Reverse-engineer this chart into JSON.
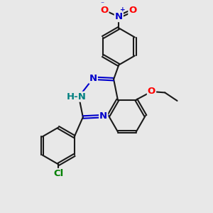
{
  "bg_color": "#e8e8e8",
  "bond_color": "#1a1a1a",
  "N_color": "#0000cc",
  "O_color": "#ff0000",
  "Cl_color": "#008000",
  "NH_color": "#008080",
  "line_width": 1.5,
  "dbo": 0.006,
  "font_size": 9.5,
  "ring_r": 0.09,
  "figsize": [
    3.0,
    3.0
  ],
  "dpi": 100,
  "xlim": [
    0.0,
    1.0
  ],
  "ylim": [
    0.0,
    1.0
  ]
}
